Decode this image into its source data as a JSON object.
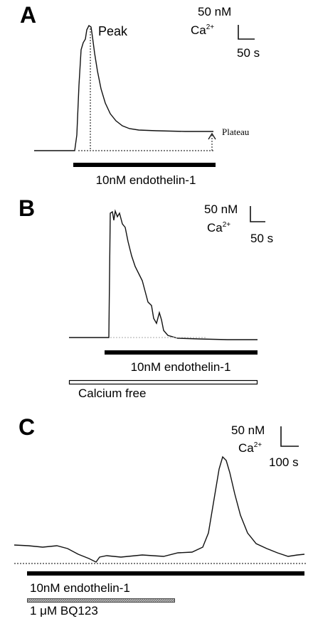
{
  "panels": [
    {
      "label": "A",
      "scale": {
        "conc": "50 nM",
        "ion": "Ca",
        "charge": "2+",
        "time": "50 s"
      },
      "annotations": {
        "peak": "Peak",
        "plateau": "Plateau"
      },
      "bars": [
        "10nM endothelin-1"
      ]
    },
    {
      "label": "B",
      "scale": {
        "conc": "50 nM",
        "ion": "Ca",
        "charge": "2+",
        "time": "50 s"
      },
      "bars": [
        "10nM endothelin-1",
        "Calcium free"
      ]
    },
    {
      "label": "C",
      "scale": {
        "conc": "50 nM",
        "ion": "Ca",
        "charge": "2+",
        "time": "100 s"
      },
      "bars": [
        "10nM endothelin-1",
        "1 μM BQ123"
      ]
    }
  ]
}
